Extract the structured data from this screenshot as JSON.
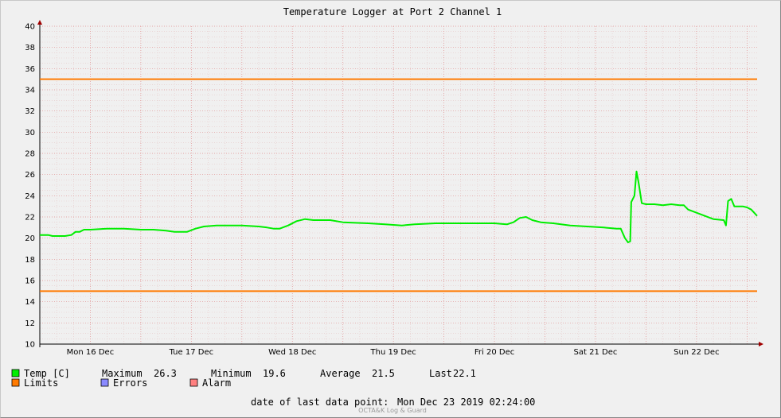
{
  "chart_data": {
    "type": "line",
    "title": "Temperature Logger at Port 2 Channel 1",
    "ylim": [
      10,
      40
    ],
    "y_ticks": [
      10,
      12,
      14,
      16,
      18,
      20,
      22,
      24,
      26,
      28,
      30,
      32,
      34,
      36,
      38,
      40
    ],
    "x_tick_labels": [
      "Mon 16 Dec",
      "Tue 17 Dec",
      "Wed 18 Dec",
      "Thu 19 Dec",
      "Fri 20 Dec",
      "Sat 21 Dec",
      "Sun 22 Dec"
    ],
    "x_start": "2019-12-16T00:00",
    "x_end": "2019-12-23T02:24",
    "limits": {
      "upper": 35,
      "lower": 15
    },
    "series": [
      {
        "name": "Temp [C]",
        "color": "#00ee00",
        "points": [
          [
            "2019-12-16T00:00",
            20.3
          ],
          [
            "2019-12-16T02:00",
            20.3
          ],
          [
            "2019-12-16T03:00",
            20.2
          ],
          [
            "2019-12-16T06:00",
            20.2
          ],
          [
            "2019-12-16T07:30",
            20.3
          ],
          [
            "2019-12-16T08:30",
            20.6
          ],
          [
            "2019-12-16T09:30",
            20.6
          ],
          [
            "2019-12-16T10:30",
            20.8
          ],
          [
            "2019-12-16T12:00",
            20.8
          ],
          [
            "2019-12-16T16:00",
            20.9
          ],
          [
            "2019-12-16T20:00",
            20.9
          ],
          [
            "2019-12-17T00:00",
            20.8
          ],
          [
            "2019-12-17T03:00",
            20.8
          ],
          [
            "2019-12-17T06:00",
            20.7
          ],
          [
            "2019-12-17T08:00",
            20.6
          ],
          [
            "2019-12-17T11:00",
            20.6
          ],
          [
            "2019-12-17T13:00",
            20.9
          ],
          [
            "2019-12-17T15:00",
            21.1
          ],
          [
            "2019-12-17T18:00",
            21.2
          ],
          [
            "2019-12-17T21:00",
            21.2
          ],
          [
            "2019-12-18T00:00",
            21.2
          ],
          [
            "2019-12-18T04:00",
            21.1
          ],
          [
            "2019-12-18T06:00",
            21.0
          ],
          [
            "2019-12-18T07:30",
            20.9
          ],
          [
            "2019-12-18T09:00",
            20.9
          ],
          [
            "2019-12-18T11:00",
            21.2
          ],
          [
            "2019-12-18T13:00",
            21.6
          ],
          [
            "2019-12-18T15:00",
            21.8
          ],
          [
            "2019-12-18T17:00",
            21.7
          ],
          [
            "2019-12-18T21:00",
            21.7
          ],
          [
            "2019-12-19T00:00",
            21.5
          ],
          [
            "2019-12-19T06:00",
            21.4
          ],
          [
            "2019-12-19T10:00",
            21.3
          ],
          [
            "2019-12-19T14:00",
            21.2
          ],
          [
            "2019-12-19T17:00",
            21.3
          ],
          [
            "2019-12-19T22:00",
            21.4
          ],
          [
            "2019-12-20T06:00",
            21.4
          ],
          [
            "2019-12-20T12:00",
            21.4
          ],
          [
            "2019-12-20T15:00",
            21.3
          ],
          [
            "2019-12-20T16:30",
            21.5
          ],
          [
            "2019-12-20T18:00",
            21.9
          ],
          [
            "2019-12-20T19:30",
            22.0
          ],
          [
            "2019-12-20T21:00",
            21.7
          ],
          [
            "2019-12-20T23:00",
            21.5
          ],
          [
            "2019-12-21T02:00",
            21.4
          ],
          [
            "2019-12-21T06:00",
            21.2
          ],
          [
            "2019-12-21T10:00",
            21.1
          ],
          [
            "2019-12-21T14:00",
            21.0
          ],
          [
            "2019-12-21T17:00",
            20.9
          ],
          [
            "2019-12-21T18:00",
            20.9
          ],
          [
            "2019-12-21T19:00",
            20.0
          ],
          [
            "2019-12-21T19:45",
            19.6
          ],
          [
            "2019-12-21T20:15",
            19.7
          ],
          [
            "2019-12-21T20:30",
            23.4
          ],
          [
            "2019-12-21T21:15",
            24.0
          ],
          [
            "2019-12-21T21:45",
            26.3
          ],
          [
            "2019-12-21T22:15",
            25.2
          ],
          [
            "2019-12-21T23:00",
            23.3
          ],
          [
            "2019-12-22T00:00",
            23.2
          ],
          [
            "2019-12-22T02:00",
            23.2
          ],
          [
            "2019-12-22T04:00",
            23.1
          ],
          [
            "2019-12-22T06:00",
            23.2
          ],
          [
            "2019-12-22T08:00",
            23.1
          ],
          [
            "2019-12-22T09:00",
            23.1
          ],
          [
            "2019-12-22T10:00",
            22.7
          ],
          [
            "2019-12-22T12:00",
            22.4
          ],
          [
            "2019-12-22T14:00",
            22.1
          ],
          [
            "2019-12-22T16:00",
            21.8
          ],
          [
            "2019-12-22T18:30",
            21.7
          ],
          [
            "2019-12-22T19:00",
            21.2
          ],
          [
            "2019-12-22T19:30",
            23.5
          ],
          [
            "2019-12-22T20:15",
            23.7
          ],
          [
            "2019-12-22T21:00",
            23.0
          ],
          [
            "2019-12-22T23:00",
            23.0
          ],
          [
            "2019-12-23T00:00",
            22.9
          ],
          [
            "2019-12-23T01:00",
            22.7
          ],
          [
            "2019-12-23T02:24",
            22.1
          ]
        ]
      }
    ],
    "limit_color": "#ff7a00",
    "grid": true
  },
  "legend": {
    "temp_label": "Temp [C]",
    "max_label": "Maximum",
    "max_value": "26.3",
    "min_label": "Minimum",
    "min_value": "19.6",
    "avg_label": "Average",
    "avg_value": "21.5",
    "last_label": "Last",
    "last_value": "22.1",
    "limits_label": "Limits",
    "errors_label": "Errors",
    "alarm_label": "Alarm",
    "temp_color": "#00ee00",
    "limits_color": "#ff7a00",
    "errors_color": "#8a8aff",
    "alarm_color": "#ff8080"
  },
  "footer": {
    "last_point_label": "date of last data point:",
    "last_point_value": "Mon Dec 23 2019 02:24:00",
    "watermark": "OCTA&K Log & Guard"
  }
}
